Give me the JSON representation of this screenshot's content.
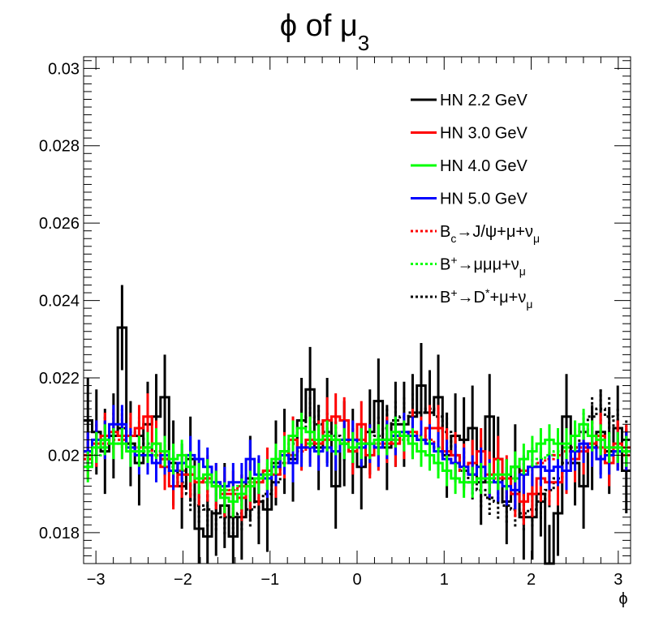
{
  "chart_data": {
    "type": "line",
    "title": "ϕ of μ",
    "title_subscript": "3",
    "xlabel": "ϕ",
    "ylabel": "",
    "xlim": [
      -3.1416,
      3.1416
    ],
    "ylim": [
      0.0172,
      0.0303
    ],
    "x_ticks": [
      "−3",
      "−2",
      "−1",
      "0",
      "1",
      "2",
      "3"
    ],
    "y_ticks": [
      "0.018",
      "0.02",
      "0.022",
      "0.024",
      "0.026",
      "0.028",
      "0.03"
    ],
    "grid": false,
    "legend_position": "top-right",
    "bins": 64,
    "series": [
      {
        "name": "HN 2.2 GeV",
        "color": "#000000",
        "dashed": false,
        "values": [
          0.0209,
          0.0206,
          0.0201,
          0.0205,
          0.0233,
          0.0203,
          0.0198,
          0.0208,
          0.021,
          0.0215,
          0.0198,
          0.0192,
          0.0199,
          0.0181,
          0.0179,
          0.0185,
          0.0187,
          0.0179,
          0.0184,
          0.0194,
          0.0188,
          0.0186,
          0.0198,
          0.0201,
          0.0199,
          0.0209,
          0.0217,
          0.0202,
          0.0209,
          0.0192,
          0.0203,
          0.0201,
          0.0197,
          0.0206,
          0.0214,
          0.0202,
          0.0208,
          0.0208,
          0.021,
          0.0218,
          0.0211,
          0.0215,
          0.02,
          0.0205,
          0.0204,
          0.0207,
          0.0193,
          0.021,
          0.0199,
          0.0188,
          0.0197,
          0.0184,
          0.0184,
          0.019,
          0.0171,
          0.0185,
          0.021,
          0.0198,
          0.0192,
          0.0202,
          0.0206,
          0.0201,
          0.0207,
          0.0196
        ],
        "errors": [
          0.0011,
          0.0011,
          0.0011,
          0.0011,
          0.0011,
          0.0011,
          0.0011,
          0.0011,
          0.0011,
          0.0011,
          0.0011,
          0.0011,
          0.0011,
          0.0011,
          0.0011,
          0.0011,
          0.0011,
          0.0011,
          0.0011,
          0.0011,
          0.0011,
          0.0011,
          0.0011,
          0.0011,
          0.0011,
          0.0011,
          0.0011,
          0.0011,
          0.0011,
          0.0011,
          0.0011,
          0.0011,
          0.0011,
          0.0011,
          0.0011,
          0.0011,
          0.0011,
          0.0011,
          0.0011,
          0.0011,
          0.0011,
          0.0011,
          0.0011,
          0.0011,
          0.0011,
          0.0011,
          0.0011,
          0.0011,
          0.0011,
          0.0011,
          0.0011,
          0.0011,
          0.0011,
          0.0011,
          0.0011,
          0.0011,
          0.0011,
          0.0011,
          0.0011,
          0.0011,
          0.0011,
          0.0011,
          0.0011,
          0.0011
        ]
      },
      {
        "name": "HN 3.0 GeV",
        "color": "#ff0000",
        "dashed": false,
        "values": [
          0.02,
          0.0203,
          0.0205,
          0.0206,
          0.0205,
          0.0205,
          0.0207,
          0.021,
          0.0203,
          0.0197,
          0.0192,
          0.0195,
          0.0195,
          0.0193,
          0.0194,
          0.0192,
          0.019,
          0.019,
          0.0189,
          0.0192,
          0.0193,
          0.0196,
          0.0195,
          0.02,
          0.0204,
          0.0202,
          0.0204,
          0.0203,
          0.0209,
          0.021,
          0.0209,
          0.0201,
          0.0208,
          0.02,
          0.0202,
          0.0204,
          0.0203,
          0.0205,
          0.0206,
          0.0204,
          0.0207,
          0.0207,
          0.0201,
          0.02,
          0.0197,
          0.0198,
          0.0201,
          0.0195,
          0.0199,
          0.0194,
          0.019,
          0.0188,
          0.019,
          0.0194,
          0.0193,
          0.0193,
          0.0196,
          0.0199,
          0.0201,
          0.0203,
          0.0205,
          0.0198,
          0.0203,
          0.0202
        ],
        "errors": [
          0.0006,
          0.0006,
          0.0006,
          0.0006,
          0.0006,
          0.0006,
          0.0006,
          0.0006,
          0.0006,
          0.0006,
          0.0006,
          0.0006,
          0.0006,
          0.0006,
          0.0006,
          0.0006,
          0.0006,
          0.0006,
          0.0006,
          0.0006,
          0.0006,
          0.0006,
          0.0006,
          0.0006,
          0.0006,
          0.0006,
          0.0006,
          0.0006,
          0.0006,
          0.0006,
          0.0006,
          0.0006,
          0.0006,
          0.0006,
          0.0006,
          0.0006,
          0.0006,
          0.0006,
          0.0006,
          0.0006,
          0.0006,
          0.0006,
          0.0006,
          0.0006,
          0.0006,
          0.0006,
          0.0006,
          0.0006,
          0.0006,
          0.0006,
          0.0006,
          0.0006,
          0.0006,
          0.0006,
          0.0006,
          0.0006,
          0.0006,
          0.0006,
          0.0006,
          0.0006,
          0.0006,
          0.0006,
          0.0006,
          0.0006
        ]
      },
      {
        "name": "HN 4.0 GeV",
        "color": "#00ff00",
        "dashed": false,
        "values": [
          0.0197,
          0.0202,
          0.0204,
          0.0203,
          0.0203,
          0.0201,
          0.0201,
          0.0202,
          0.0203,
          0.0201,
          0.0199,
          0.02,
          0.0197,
          0.0194,
          0.0195,
          0.0192,
          0.0189,
          0.0188,
          0.019,
          0.0192,
          0.0194,
          0.0195,
          0.0199,
          0.0201,
          0.0205,
          0.0207,
          0.0206,
          0.0204,
          0.0205,
          0.0204,
          0.0203,
          0.0202,
          0.0203,
          0.0203,
          0.0204,
          0.0204,
          0.0206,
          0.0205,
          0.0203,
          0.0201,
          0.02,
          0.0198,
          0.0196,
          0.0194,
          0.0193,
          0.0193,
          0.0194,
          0.0194,
          0.0195,
          0.0195,
          0.0197,
          0.0199,
          0.0201,
          0.0203,
          0.0204,
          0.0203,
          0.0203,
          0.0205,
          0.0208,
          0.0205,
          0.0204,
          0.0202,
          0.0202,
          0.0201
        ],
        "errors": [
          0.0004,
          0.0004,
          0.0004,
          0.0004,
          0.0004,
          0.0004,
          0.0004,
          0.0004,
          0.0004,
          0.0004,
          0.0004,
          0.0004,
          0.0004,
          0.0004,
          0.0004,
          0.0004,
          0.0004,
          0.0004,
          0.0004,
          0.0004,
          0.0004,
          0.0004,
          0.0004,
          0.0004,
          0.0004,
          0.0004,
          0.0004,
          0.0004,
          0.0004,
          0.0004,
          0.0004,
          0.0004,
          0.0004,
          0.0004,
          0.0004,
          0.0004,
          0.0004,
          0.0004,
          0.0004,
          0.0004,
          0.0004,
          0.0004,
          0.0004,
          0.0004,
          0.0004,
          0.0004,
          0.0004,
          0.0004,
          0.0004,
          0.0004,
          0.0004,
          0.0004,
          0.0004,
          0.0004,
          0.0004,
          0.0004,
          0.0004,
          0.0004,
          0.0004,
          0.0004,
          0.0004,
          0.0004,
          0.0004,
          0.0004
        ]
      },
      {
        "name": "HN 5.0 GeV",
        "color": "#0000ff",
        "dashed": false,
        "values": [
          0.0201,
          0.0204,
          0.0204,
          0.0208,
          0.0208,
          0.0202,
          0.02,
          0.02,
          0.0198,
          0.02,
          0.0196,
          0.0198,
          0.02,
          0.0199,
          0.0197,
          0.0193,
          0.0192,
          0.0193,
          0.0193,
          0.0199,
          0.0195,
          0.0194,
          0.0197,
          0.02,
          0.0198,
          0.0202,
          0.0202,
          0.0201,
          0.0202,
          0.0201,
          0.0204,
          0.0204,
          0.0202,
          0.0203,
          0.0202,
          0.0204,
          0.0205,
          0.0206,
          0.0205,
          0.0204,
          0.0203,
          0.0201,
          0.0199,
          0.0198,
          0.0197,
          0.0195,
          0.0197,
          0.0194,
          0.0193,
          0.0192,
          0.0191,
          0.0195,
          0.0197,
          0.0197,
          0.0196,
          0.0197,
          0.0196,
          0.0201,
          0.0203,
          0.0202,
          0.0199,
          0.02,
          0.0201,
          0.0201
        ],
        "errors": [
          0.0005,
          0.0005,
          0.0005,
          0.0005,
          0.0005,
          0.0005,
          0.0005,
          0.0005,
          0.0005,
          0.0005,
          0.0005,
          0.0005,
          0.0005,
          0.0005,
          0.0005,
          0.0005,
          0.0005,
          0.0005,
          0.0005,
          0.0005,
          0.0005,
          0.0005,
          0.0005,
          0.0005,
          0.0005,
          0.0005,
          0.0005,
          0.0005,
          0.0005,
          0.0005,
          0.0005,
          0.0005,
          0.0005,
          0.0005,
          0.0005,
          0.0005,
          0.0005,
          0.0005,
          0.0005,
          0.0005,
          0.0005,
          0.0005,
          0.0005,
          0.0005,
          0.0005,
          0.0005,
          0.0005,
          0.0005,
          0.0005,
          0.0005,
          0.0005,
          0.0005,
          0.0005,
          0.0005,
          0.0005,
          0.0005,
          0.0005,
          0.0005,
          0.0005,
          0.0005,
          0.0005,
          0.0005,
          0.0005,
          0.0005
        ]
      },
      {
        "name": "Bc→J/ψ+μ+νμ",
        "color": "#ff0000",
        "dashed": true,
        "values": [
          0.0199,
          0.0201,
          0.0203,
          0.0204,
          0.0204,
          0.0203,
          0.0202,
          0.0202,
          0.02,
          0.0199,
          0.0198,
          0.0196,
          0.0195,
          0.0194,
          0.0193,
          0.0192,
          0.0192,
          0.0191,
          0.0192,
          0.0193,
          0.0194,
          0.0195,
          0.0197,
          0.0198,
          0.02,
          0.0201,
          0.0202,
          0.0203,
          0.0204,
          0.0204,
          0.0204,
          0.0204,
          0.0204,
          0.0203,
          0.0203,
          0.0203,
          0.0204,
          0.0205,
          0.0205,
          0.0205,
          0.0204,
          0.0202,
          0.02,
          0.0198,
          0.0196,
          0.0195,
          0.0194,
          0.0194,
          0.0194,
          0.0194,
          0.0195,
          0.0196,
          0.0197,
          0.0198,
          0.0199,
          0.02,
          0.0201,
          0.0202,
          0.0202,
          0.0203,
          0.0202,
          0.0202,
          0.0201,
          0.02
        ],
        "errors": [
          0.0002,
          0.0002,
          0.0002,
          0.0002,
          0.0002,
          0.0002,
          0.0002,
          0.0002,
          0.0002,
          0.0002,
          0.0002,
          0.0002,
          0.0002,
          0.0002,
          0.0002,
          0.0002,
          0.0002,
          0.0002,
          0.0002,
          0.0002,
          0.0002,
          0.0002,
          0.0002,
          0.0002,
          0.0002,
          0.0002,
          0.0002,
          0.0002,
          0.0002,
          0.0002,
          0.0002,
          0.0002,
          0.0002,
          0.0002,
          0.0002,
          0.0002,
          0.0002,
          0.0002,
          0.0002,
          0.0002,
          0.0002,
          0.0002,
          0.0002,
          0.0002,
          0.0002,
          0.0002,
          0.0002,
          0.0002,
          0.0002,
          0.0002,
          0.0002,
          0.0002,
          0.0002,
          0.0002,
          0.0002,
          0.0002,
          0.0002,
          0.0002,
          0.0002,
          0.0002,
          0.0002,
          0.0002,
          0.0002,
          0.0002
        ]
      },
      {
        "name": "B+→μμμ+νμ",
        "color": "#00ff00",
        "dashed": true,
        "values": [
          0.0199,
          0.02,
          0.0202,
          0.0203,
          0.0203,
          0.0203,
          0.0202,
          0.0201,
          0.02,
          0.0199,
          0.0197,
          0.0196,
          0.0195,
          0.0194,
          0.0193,
          0.0192,
          0.0191,
          0.0191,
          0.0192,
          0.0193,
          0.0194,
          0.0196,
          0.0197,
          0.0199,
          0.02,
          0.0202,
          0.0203,
          0.0204,
          0.0204,
          0.0204,
          0.0204,
          0.0204,
          0.0203,
          0.0203,
          0.0203,
          0.0203,
          0.0204,
          0.0204,
          0.0204,
          0.0204,
          0.0203,
          0.0202,
          0.02,
          0.0198,
          0.0196,
          0.0195,
          0.0194,
          0.0193,
          0.0193,
          0.0193,
          0.0194,
          0.0196,
          0.0197,
          0.0199,
          0.02,
          0.0201,
          0.0202,
          0.0203,
          0.0203,
          0.0203,
          0.0202,
          0.0201,
          0.0201,
          0.02
        ],
        "errors": [
          0.0002,
          0.0002,
          0.0002,
          0.0002,
          0.0002,
          0.0002,
          0.0002,
          0.0002,
          0.0002,
          0.0002,
          0.0002,
          0.0002,
          0.0002,
          0.0002,
          0.0002,
          0.0002,
          0.0002,
          0.0002,
          0.0002,
          0.0002,
          0.0002,
          0.0002,
          0.0002,
          0.0002,
          0.0002,
          0.0002,
          0.0002,
          0.0002,
          0.0002,
          0.0002,
          0.0002,
          0.0002,
          0.0002,
          0.0002,
          0.0002,
          0.0002,
          0.0002,
          0.0002,
          0.0002,
          0.0002,
          0.0002,
          0.0002,
          0.0002,
          0.0002,
          0.0002,
          0.0002,
          0.0002,
          0.0002,
          0.0002,
          0.0002,
          0.0002,
          0.0002,
          0.0002,
          0.0002,
          0.0002,
          0.0002,
          0.0002,
          0.0002,
          0.0002,
          0.0002,
          0.0002,
          0.0002,
          0.0002,
          0.0002
        ]
      },
      {
        "name": "B+→D*+μ+νμ",
        "color": "#000000",
        "dashed": true,
        "values": [
          0.0201,
          0.0203,
          0.0205,
          0.0206,
          0.0207,
          0.0206,
          0.0205,
          0.0203,
          0.0201,
          0.0199,
          0.0196,
          0.0193,
          0.019,
          0.0187,
          0.0186,
          0.0185,
          0.0184,
          0.0184,
          0.0185,
          0.0186,
          0.0188,
          0.019,
          0.0193,
          0.0198,
          0.0203,
          0.0207,
          0.021,
          0.0208,
          0.0206,
          0.0205,
          0.0203,
          0.0202,
          0.0202,
          0.0203,
          0.0205,
          0.0207,
          0.0209,
          0.021,
          0.0211,
          0.0211,
          0.0212,
          0.021,
          0.0206,
          0.02,
          0.0196,
          0.0193,
          0.0191,
          0.0189,
          0.0188,
          0.0187,
          0.0186,
          0.0185,
          0.0186,
          0.0188,
          0.0191,
          0.0194,
          0.0198,
          0.0202,
          0.0206,
          0.021,
          0.0212,
          0.021,
          0.0207,
          0.0204
        ],
        "errors": [
          0.0005,
          0.0005,
          0.0005,
          0.0005,
          0.0005,
          0.0005,
          0.0005,
          0.0005,
          0.0005,
          0.0005,
          0.0005,
          0.0005,
          0.0005,
          0.0005,
          0.0005,
          0.0005,
          0.0005,
          0.0005,
          0.0005,
          0.0005,
          0.0005,
          0.0005,
          0.0005,
          0.0005,
          0.0005,
          0.0005,
          0.0005,
          0.0005,
          0.0005,
          0.0005,
          0.0005,
          0.0005,
          0.0005,
          0.0005,
          0.0005,
          0.0005,
          0.0005,
          0.0005,
          0.0005,
          0.0005,
          0.0005,
          0.0005,
          0.0005,
          0.0005,
          0.0005,
          0.0005,
          0.0005,
          0.0005,
          0.0005,
          0.0005,
          0.0005,
          0.0005,
          0.0005,
          0.0005,
          0.0005,
          0.0005,
          0.0005,
          0.0005,
          0.0005,
          0.0005,
          0.0005,
          0.0005,
          0.0005,
          0.0005
        ]
      }
    ]
  }
}
